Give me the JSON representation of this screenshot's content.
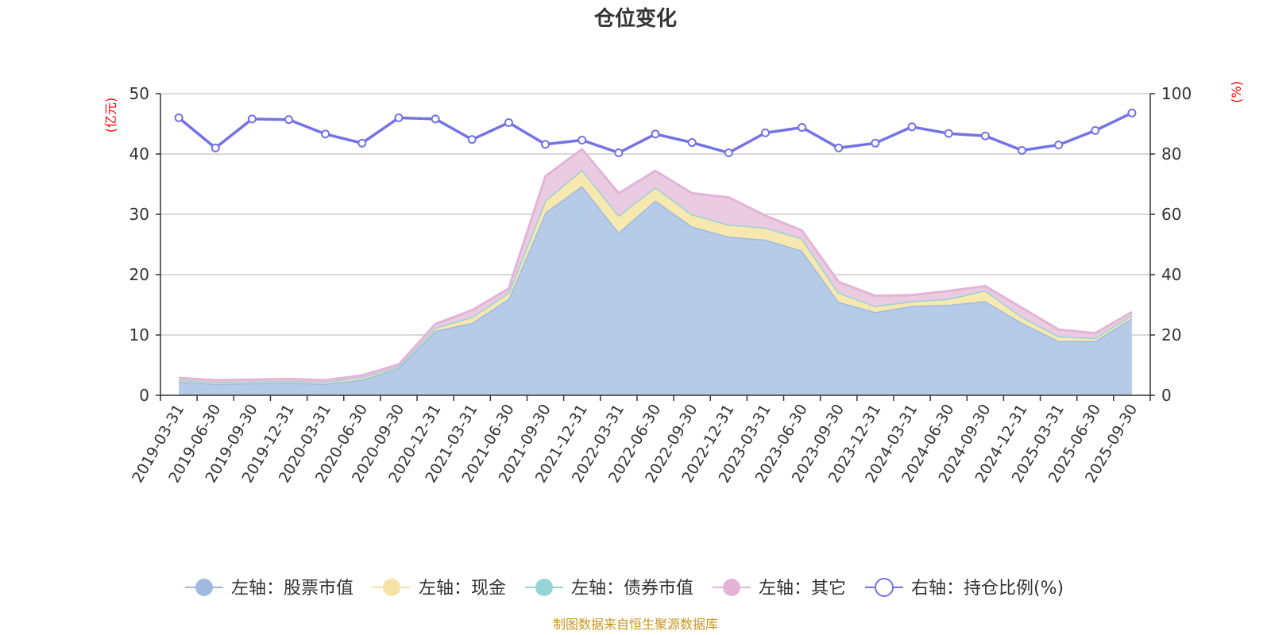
{
  "chart_data": {
    "type": "area",
    "title": "仓位变化",
    "left_unit": "(亿元)",
    "right_unit": "(%)",
    "source_note": "制图数据来自恒生聚源数据库",
    "categories": [
      "2019-03-31",
      "2019-06-30",
      "2019-09-30",
      "2019-12-31",
      "2020-03-31",
      "2020-06-30",
      "2020-09-30",
      "2020-12-31",
      "2021-03-31",
      "2021-06-30",
      "2021-09-30",
      "2021-12-31",
      "2022-03-31",
      "2022-06-30",
      "2022-09-30",
      "2022-12-31",
      "2023-03-31",
      "2023-06-30",
      "2023-09-30",
      "2023-12-31",
      "2024-03-31",
      "2024-06-30",
      "2024-09-30",
      "2024-12-31",
      "2025-03-31",
      "2025-06-30",
      "2025-09-30"
    ],
    "y_left": {
      "min": 0,
      "max": 50,
      "ticks": [
        0,
        10,
        20,
        30,
        40,
        50
      ]
    },
    "y_right": {
      "min": 0,
      "max": 100,
      "ticks": [
        0,
        20,
        40,
        60,
        80,
        100
      ]
    },
    "grid": true,
    "legend_position": "bottom",
    "series": [
      {
        "name": "左轴：股票市值",
        "axis": "left",
        "kind": "stacked-area",
        "color": "#9fbae0",
        "fill": "#b6cbe8",
        "values": [
          2.3,
          1.9,
          2.0,
          2.1,
          1.9,
          2.6,
          4.5,
          10.7,
          12.0,
          16.0,
          30.3,
          34.7,
          27.0,
          32.3,
          28.0,
          26.3,
          25.8,
          24.0,
          15.5,
          13.8,
          14.8,
          15.0,
          15.6,
          12.0,
          9.0,
          9.0,
          12.8
        ]
      },
      {
        "name": "左轴：现金",
        "axis": "left",
        "kind": "stacked-area",
        "color": "#f5e3a3",
        "fill": "#f7e8b0",
        "values": [
          0.3,
          0.3,
          0.3,
          0.3,
          0.3,
          0.4,
          0.3,
          0.5,
          1.0,
          1.0,
          2.0,
          2.7,
          2.8,
          2.2,
          2.0,
          2.0,
          2.0,
          2.0,
          1.5,
          1.0,
          0.8,
          1.0,
          1.8,
          1.0,
          0.8,
          0.5,
          0.5
        ]
      },
      {
        "name": "左轴：债券市值",
        "axis": "left",
        "kind": "stacked-area",
        "color": "#96d3d6",
        "fill": "#a8dadc",
        "values": [
          0,
          0,
          0,
          0,
          0,
          0,
          0,
          0,
          0,
          0,
          0,
          0,
          0,
          0,
          0,
          0,
          0,
          0,
          0,
          0,
          0,
          0,
          0,
          0,
          0,
          0,
          0
        ]
      },
      {
        "name": "左轴：其它",
        "axis": "left",
        "kind": "stacked-area",
        "color": "#e3b4d6",
        "fill": "#ebcbe2",
        "values": [
          0.3,
          0.3,
          0.3,
          0.3,
          0.3,
          0.3,
          0.3,
          0.6,
          1.1,
          0.7,
          4.0,
          3.4,
          3.7,
          2.7,
          3.5,
          4.5,
          2.0,
          1.3,
          1.8,
          1.7,
          1.0,
          1.3,
          0.7,
          1.5,
          1.1,
          0.8,
          0.5
        ]
      },
      {
        "name": "右轴：持仓比例(%)",
        "axis": "right",
        "kind": "line",
        "color": "#7373e6",
        "values": [
          92.0,
          82.0,
          91.6,
          91.4,
          86.6,
          83.6,
          92.0,
          91.6,
          84.8,
          90.4,
          83.2,
          84.6,
          80.4,
          86.6,
          83.8,
          80.4,
          87.0,
          88.8,
          82.0,
          83.6,
          89.0,
          86.8,
          86.0,
          81.2,
          83.0,
          87.8,
          93.6
        ]
      }
    ]
  }
}
